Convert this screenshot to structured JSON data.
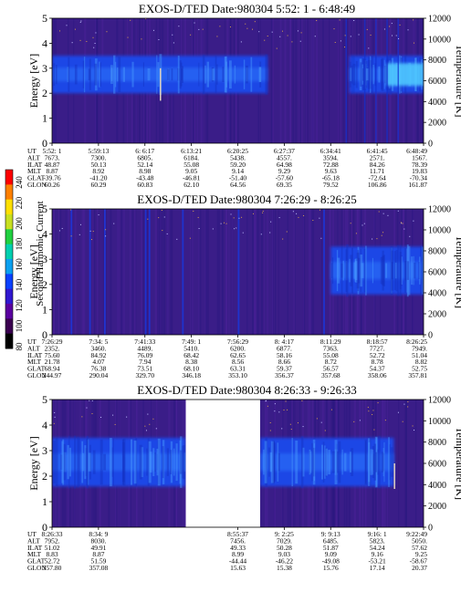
{
  "colorbar": {
    "title": "Second Harmonic Current",
    "ticks": [
      "240",
      "220",
      "200",
      "180",
      "160",
      "140",
      "120",
      "100",
      "80"
    ],
    "colors": [
      "#000000",
      "#3a0050",
      "#5a00a0",
      "#3018d0",
      "#0a40ff",
      "#0aa0f0",
      "#00d0b0",
      "#20d040",
      "#c8e020",
      "#ffe000",
      "#ff8000",
      "#ff0000"
    ]
  },
  "panel_colors": {
    "background": "#3a1d88",
    "band": "#1f46e6",
    "band_bright": "#3080ff",
    "gap": "#ffffff"
  },
  "chart_data": [
    {
      "type": "heatmap",
      "title": "EXOS-D/TED   Date:980304   5:52: 1 - 6:48:49",
      "ylabel": "Energy [eV]",
      "y2label": "Temperature [K]",
      "ylim": [
        0,
        5
      ],
      "y2lim": [
        0,
        12000
      ],
      "yticks": [
        "0",
        "1",
        "2",
        "3",
        "4",
        "5"
      ],
      "y2ticks": [
        "0",
        "2000",
        "4000",
        "6000",
        "8000",
        "10000",
        "12000"
      ],
      "band_ev": [
        2.0,
        3.5
      ],
      "band_x": [
        0.0,
        0.58
      ],
      "band2_x": [
        0.8,
        1.0
      ],
      "gap_x": null,
      "row_labels": [
        "UT",
        "ALT",
        "ILAT",
        "MLT",
        "GLAT",
        "GLON"
      ],
      "columns": [
        [
          "5:52: 1",
          "7673.",
          "48.87",
          "8.87",
          "-39.76",
          "60.26"
        ],
        [
          "5:59:13",
          "7300.",
          "50.13",
          "8.92",
          "-41.20",
          "60.29"
        ],
        [
          "6: 6:17",
          "6805.",
          "52.14",
          "8.98",
          "-43.48",
          "60.83"
        ],
        [
          "6:13:21",
          "6184.",
          "55.08",
          "9.05",
          "-46.81",
          "62.10"
        ],
        [
          "6:20:25",
          "5438.",
          "59.20",
          "9.14",
          "-51.40",
          "64.56"
        ],
        [
          "6:27:37",
          "4557.",
          "64.98",
          "9.29",
          "-57.60",
          "69.35"
        ],
        [
          "6:34:41",
          "3594.",
          "72.88",
          "9.63",
          "-65.18",
          "79.52"
        ],
        [
          "6:41:45",
          "2571.",
          "84.26",
          "11.71",
          "-72.64",
          "106.86"
        ],
        [
          "6:48:49",
          "1567.",
          "78.39",
          "19.83",
          "-70.34",
          "161.87"
        ]
      ]
    },
    {
      "type": "heatmap",
      "title": "EXOS-D/TED   Date:980304   7:26:29 - 8:26:25",
      "ylabel": "Energy [eV]",
      "y2label": "Temperature [K]",
      "ylim": [
        0,
        5
      ],
      "y2lim": [
        0,
        12000
      ],
      "yticks": [
        "0",
        "1",
        "2",
        "3",
        "4",
        "5"
      ],
      "y2ticks": [
        "0",
        "2000",
        "4000",
        "6000",
        "8000",
        "10000",
        "12000"
      ],
      "band_ev": [
        1.6,
        3.5
      ],
      "band_x": [
        0.75,
        1.0
      ],
      "band2_x": null,
      "gap_x": null,
      "row_labels": [
        "UT",
        "ALT",
        "ILAT",
        "MLT",
        "GLAT",
        "GLON"
      ],
      "columns": [
        [
          "7:26:29",
          "2352.",
          "75.60",
          "21.78",
          "68.94",
          "244.97"
        ],
        [
          "7:34: 5",
          "3460.",
          "84.92",
          "4.07",
          "76.38",
          "290.04"
        ],
        [
          "7:41:33",
          "4489.",
          "76.09",
          "7.94",
          "73.51",
          "329.70"
        ],
        [
          "7:49: 1",
          "5410.",
          "68.42",
          "8.38",
          "68.10",
          "346.18"
        ],
        [
          "7:56:29",
          "6200.",
          "62.65",
          "8.56",
          "63.31",
          "353.10"
        ],
        [
          "8: 4:17",
          "6877.",
          "58.16",
          "8.66",
          "59.37",
          "356.37"
        ],
        [
          "8:11:29",
          "7363.",
          "55.08",
          "8.72",
          "56.57",
          "357.68"
        ],
        [
          "8:18:57",
          "7727.",
          "52.72",
          "8.78",
          "54.37",
          "358.06"
        ],
        [
          "8:26:25",
          "7949.",
          "51.04",
          "8.82",
          "52.75",
          "357.81"
        ]
      ]
    },
    {
      "type": "heatmap",
      "title": "EXOS-D/TED   Date:980304   8:26:33 - 9:26:33",
      "ylabel": "Energy [eV]",
      "y2label": "Temperature [K]",
      "ylim": [
        0,
        5
      ],
      "y2lim": [
        0,
        12000
      ],
      "yticks": [
        "0",
        "1",
        "2",
        "3",
        "4",
        "5"
      ],
      "y2ticks": [
        "0",
        "2000",
        "4000",
        "6000",
        "8000",
        "10000",
        "12000"
      ],
      "band_ev": [
        1.6,
        3.5
      ],
      "band_x": [
        0.0,
        0.36
      ],
      "band2_x": [
        0.56,
        0.92
      ],
      "gap_x": [
        0.36,
        0.56
      ],
      "row_labels": [
        "UT",
        "ALT",
        "ILAT",
        "MLT",
        "GLAT",
        "GLON"
      ],
      "columns": [
        [
          "8:26:33",
          "7952.",
          "51.02",
          "8.83",
          "52.72",
          "357.80"
        ],
        [
          "8:34: 9",
          "8030.",
          "49.91",
          "8.87",
          "51.59",
          "357.08"
        ],
        [
          "",
          "",
          "",
          "",
          "",
          ""
        ],
        [
          "",
          "",
          "",
          "",
          "",
          ""
        ],
        [
          "8:55:37",
          "7456.",
          "49.33",
          "8.99",
          "-44.44",
          "15.63"
        ],
        [
          "9: 2:25",
          "7029.",
          "50.28",
          "9.03",
          "-46.22",
          "15.38"
        ],
        [
          "9: 9:13",
          "6485.",
          "51.87",
          "9.09",
          "-49.08",
          "15.76"
        ],
        [
          "9:16: 1",
          "5823.",
          "54.24",
          "9.16",
          "-53.21",
          "17.14"
        ],
        [
          "9:22:49",
          "5050.",
          "57.62",
          "9.25",
          "-58.67",
          "20.37"
        ]
      ]
    }
  ]
}
